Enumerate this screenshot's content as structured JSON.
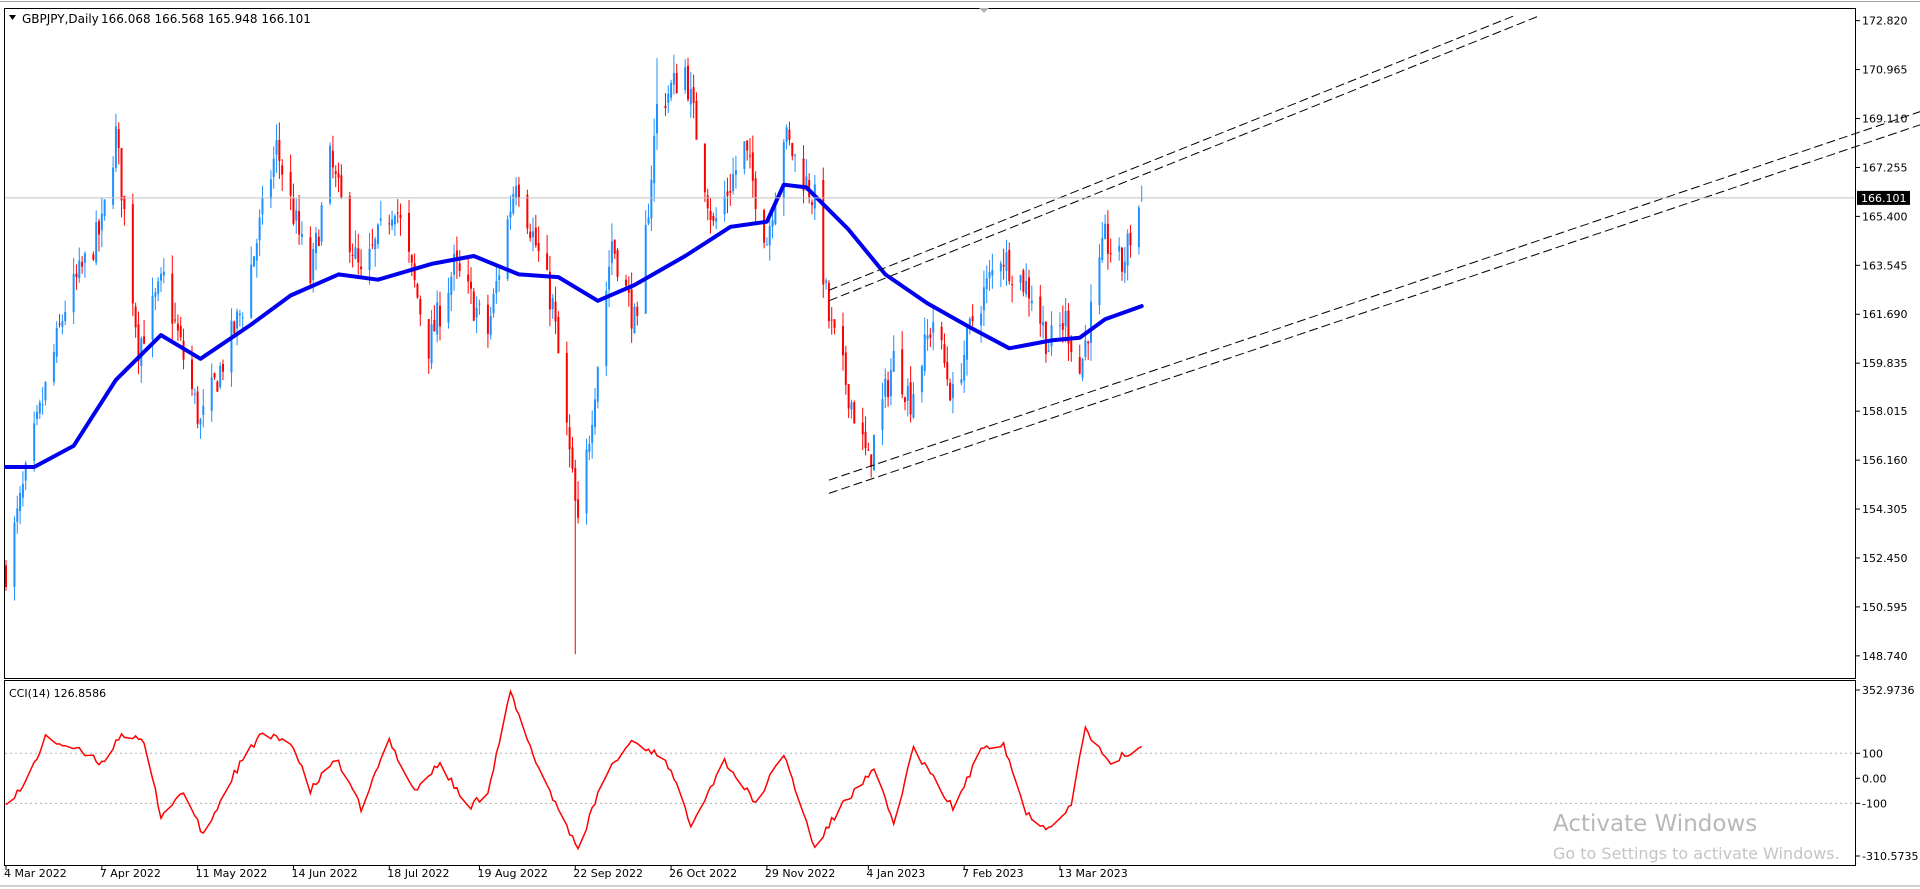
{
  "header": {
    "symbol": "GBPJPY,Daily",
    "ohlc": "166.068 166.568 165.948 166.101"
  },
  "price_axis": {
    "labels": [
      "172.820",
      "170.965",
      "169.110",
      "167.255",
      "165.400",
      "163.545",
      "161.690",
      "159.835",
      "158.015",
      "156.160",
      "154.305",
      "152.450",
      "150.595",
      "148.740"
    ],
    "current_price": "166.101"
  },
  "indicator": {
    "name": "CCI(14) 126.8586",
    "labels": [
      "352.9736",
      "100",
      "0.00",
      "-100",
      "-310.5735"
    ]
  },
  "time_axis": {
    "labels": [
      "4 Mar 2022",
      "7 Apr 2022",
      "11 May 2022",
      "14 Jun 2022",
      "18 Jul 2022",
      "19 Aug 2022",
      "22 Sep 2022",
      "26 Oct 2022",
      "29 Nov 2022",
      "4 Jan 2023",
      "7 Feb 2023",
      "13 Mar 2023"
    ]
  },
  "watermark": {
    "title": "Activate Windows",
    "subtitle": "Go to Settings to activate Windows."
  },
  "colors": {
    "bull": "#1e90ff",
    "bear": "#ff0000",
    "ma": "#0000ee",
    "cci": "#ff0000",
    "channel": "#000000"
  },
  "chart_data": {
    "type": "candlestick",
    "symbol": "GBPJPY",
    "timeframe": "Daily",
    "last": {
      "open": 166.068,
      "high": 166.568,
      "low": 165.948,
      "close": 166.101
    },
    "ylim": [
      147.9,
      173.3
    ],
    "close_path": [
      {
        "x": "2022-03-04",
        "y": 152.0
      },
      {
        "x": "2022-03-14",
        "y": 157.0
      },
      {
        "x": "2022-03-25",
        "y": 162.0
      },
      {
        "x": "2022-04-07",
        "y": 165.0
      },
      {
        "x": "2022-04-12",
        "y": 168.5
      },
      {
        "x": "2022-04-20",
        "y": 160.5
      },
      {
        "x": "2022-04-29",
        "y": 163.0
      },
      {
        "x": "2022-05-12",
        "y": 157.5
      },
      {
        "x": "2022-05-27",
        "y": 162.0
      },
      {
        "x": "2022-06-08",
        "y": 168.0
      },
      {
        "x": "2022-06-20",
        "y": 163.0
      },
      {
        "x": "2022-06-27",
        "y": 167.5
      },
      {
        "x": "2022-07-08",
        "y": 163.0
      },
      {
        "x": "2022-07-20",
        "y": 166.0
      },
      {
        "x": "2022-08-01",
        "y": 160.5
      },
      {
        "x": "2022-08-10",
        "y": 163.5
      },
      {
        "x": "2022-08-22",
        "y": 161.0
      },
      {
        "x": "2022-09-01",
        "y": 167.0
      },
      {
        "x": "2022-09-14",
        "y": 162.0
      },
      {
        "x": "2022-09-23",
        "y": 153.5
      },
      {
        "x": "2022-10-05",
        "y": 164.5
      },
      {
        "x": "2022-10-14",
        "y": 161.0
      },
      {
        "x": "2022-10-21",
        "y": 169.5
      },
      {
        "x": "2022-10-31",
        "y": 171.0
      },
      {
        "x": "2022-11-10",
        "y": 165.0
      },
      {
        "x": "2022-11-21",
        "y": 168.0
      },
      {
        "x": "2022-11-29",
        "y": 164.5
      },
      {
        "x": "2022-12-05",
        "y": 168.5
      },
      {
        "x": "2022-12-16",
        "y": 166.0
      },
      {
        "x": "2022-12-21",
        "y": 161.5
      },
      {
        "x": "2023-01-04",
        "y": 156.0
      },
      {
        "x": "2023-01-13",
        "y": 160.0
      },
      {
        "x": "2023-01-19",
        "y": 158.5
      },
      {
        "x": "2023-01-27",
        "y": 161.5
      },
      {
        "x": "2023-02-03",
        "y": 158.5
      },
      {
        "x": "2023-02-10",
        "y": 161.5
      },
      {
        "x": "2023-02-20",
        "y": 164.0
      },
      {
        "x": "2023-03-03",
        "y": 162.5
      },
      {
        "x": "2023-03-09",
        "y": 160.5
      },
      {
        "x": "2023-03-15",
        "y": 161.5
      },
      {
        "x": "2023-03-20",
        "y": 159.5
      },
      {
        "x": "2023-03-29",
        "y": 164.5
      },
      {
        "x": "2023-04-04",
        "y": 163.5
      },
      {
        "x": "2023-04-11",
        "y": 166.1
      }
    ],
    "moving_average": [
      {
        "x": "2022-03-04",
        "y": 155.9
      },
      {
        "x": "2022-03-14",
        "y": 155.9
      },
      {
        "x": "2022-03-28",
        "y": 156.7
      },
      {
        "x": "2022-04-12",
        "y": 159.2
      },
      {
        "x": "2022-04-28",
        "y": 160.9
      },
      {
        "x": "2022-05-12",
        "y": 160.0
      },
      {
        "x": "2022-05-30",
        "y": 161.3
      },
      {
        "x": "2022-06-13",
        "y": 162.4
      },
      {
        "x": "2022-06-30",
        "y": 163.2
      },
      {
        "x": "2022-07-14",
        "y": 163.0
      },
      {
        "x": "2022-08-02",
        "y": 163.6
      },
      {
        "x": "2022-08-17",
        "y": 163.9
      },
      {
        "x": "2022-09-02",
        "y": 163.2
      },
      {
        "x": "2022-09-16",
        "y": 163.1
      },
      {
        "x": "2022-09-30",
        "y": 162.2
      },
      {
        "x": "2022-10-13",
        "y": 162.8
      },
      {
        "x": "2022-10-31",
        "y": 163.9
      },
      {
        "x": "2022-11-16",
        "y": 165.0
      },
      {
        "x": "2022-11-29",
        "y": 165.2
      },
      {
        "x": "2022-12-05",
        "y": 166.6
      },
      {
        "x": "2022-12-13",
        "y": 166.5
      },
      {
        "x": "2022-12-28",
        "y": 164.9
      },
      {
        "x": "2023-01-10",
        "y": 163.2
      },
      {
        "x": "2023-01-25",
        "y": 162.1
      },
      {
        "x": "2023-02-09",
        "y": 161.2
      },
      {
        "x": "2023-02-23",
        "y": 160.4
      },
      {
        "x": "2023-03-10",
        "y": 160.7
      },
      {
        "x": "2023-03-20",
        "y": 160.8
      },
      {
        "x": "2023-03-29",
        "y": 161.5
      },
      {
        "x": "2023-04-11",
        "y": 162.0
      }
    ],
    "channel_lines": [
      {
        "x1": "2022-12-21",
        "y1": 162.6,
        "x2": "2023-08-21",
        "y2": 173.0
      },
      {
        "x1": "2022-12-21",
        "y1": 162.2,
        "x2": "2023-08-30",
        "y2": 173.0
      },
      {
        "x1": "2022-12-21",
        "y1": 155.4,
        "x2": "2024-01-13",
        "y2": 169.4
      },
      {
        "x1": "2022-12-21",
        "y1": 154.9,
        "x2": "2024-01-13",
        "y2": 168.9
      }
    ],
    "cci": {
      "name": "CCI(14)",
      "last": 126.8586,
      "ylim": [
        -310.5735,
        352.9736
      ],
      "levels": [
        100,
        0,
        -100
      ],
      "values": [
        {
          "x": "2022-03-04",
          "y": -90
        },
        {
          "x": "2022-03-10",
          "y": -40
        },
        {
          "x": "2022-03-18",
          "y": 160
        },
        {
          "x": "2022-03-28",
          "y": 120
        },
        {
          "x": "2022-04-07",
          "y": 60
        },
        {
          "x": "2022-04-14",
          "y": 180
        },
        {
          "x": "2022-04-22",
          "y": 140
        },
        {
          "x": "2022-04-28",
          "y": -150
        },
        {
          "x": "2022-05-06",
          "y": -50
        },
        {
          "x": "2022-05-13",
          "y": -230
        },
        {
          "x": "2022-05-24",
          "y": 20
        },
        {
          "x": "2022-06-02",
          "y": 170
        },
        {
          "x": "2022-06-13",
          "y": 150
        },
        {
          "x": "2022-06-20",
          "y": -50
        },
        {
          "x": "2022-06-29",
          "y": 80
        },
        {
          "x": "2022-07-08",
          "y": -120
        },
        {
          "x": "2022-07-18",
          "y": 150
        },
        {
          "x": "2022-07-27",
          "y": -50
        },
        {
          "x": "2022-08-05",
          "y": 60
        },
        {
          "x": "2022-08-15",
          "y": -120
        },
        {
          "x": "2022-08-22",
          "y": -50
        },
        {
          "x": "2022-08-30",
          "y": 340
        },
        {
          "x": "2022-09-06",
          "y": 120
        },
        {
          "x": "2022-09-15",
          "y": -100
        },
        {
          "x": "2022-09-23",
          "y": -280
        },
        {
          "x": "2022-10-03",
          "y": 20
        },
        {
          "x": "2022-10-12",
          "y": 150
        },
        {
          "x": "2022-10-24",
          "y": 80
        },
        {
          "x": "2022-11-02",
          "y": -180
        },
        {
          "x": "2022-11-14",
          "y": 70
        },
        {
          "x": "2022-11-25",
          "y": -100
        },
        {
          "x": "2022-12-05",
          "y": 100
        },
        {
          "x": "2022-12-16",
          "y": -280
        },
        {
          "x": "2022-12-26",
          "y": -100
        },
        {
          "x": "2023-01-06",
          "y": 30
        },
        {
          "x": "2023-01-13",
          "y": -180
        },
        {
          "x": "2023-01-20",
          "y": 120
        },
        {
          "x": "2023-02-03",
          "y": -120
        },
        {
          "x": "2023-02-14",
          "y": 130
        },
        {
          "x": "2023-02-21",
          "y": 140
        },
        {
          "x": "2023-03-01",
          "y": -140
        },
        {
          "x": "2023-03-09",
          "y": -200
        },
        {
          "x": "2023-03-17",
          "y": -100
        },
        {
          "x": "2023-03-22",
          "y": 200
        },
        {
          "x": "2023-03-30",
          "y": 60
        },
        {
          "x": "2023-04-11",
          "y": 127
        }
      ]
    }
  }
}
